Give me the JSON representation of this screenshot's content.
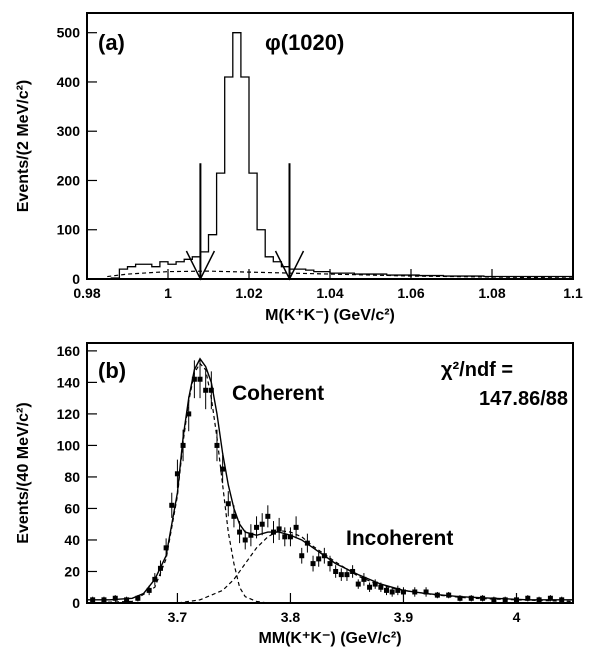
{
  "chart_data": [
    {
      "panel_label": "(a)",
      "type": "line",
      "annotation": "φ(1020)",
      "xlabel": "M(K⁺K⁻) (GeV/c²)",
      "ylabel": "Events/(2 MeV/c²)",
      "xlim": [
        0.98,
        1.1
      ],
      "ylim": [
        0,
        540
      ],
      "x_ticks": [
        0.98,
        1,
        1.02,
        1.04,
        1.06,
        1.08,
        1.1
      ],
      "y_ticks": [
        0,
        100,
        200,
        300,
        400,
        500
      ],
      "arrow_cuts_x": [
        1.008,
        1.03
      ],
      "series": [
        {
          "style": "histogram",
          "bin_width": 0.002,
          "x": [
            0.98,
            0.982,
            0.984,
            0.986,
            0.988,
            0.99,
            0.992,
            0.994,
            0.996,
            0.998,
            1.0,
            1.002,
            1.004,
            1.006,
            1.008,
            1.01,
            1.012,
            1.014,
            1.016,
            1.018,
            1.02,
            1.022,
            1.024,
            1.026,
            1.028,
            1.03,
            1.032,
            1.034,
            1.036,
            1.038,
            1.04,
            1.042,
            1.044,
            1.046,
            1.048,
            1.05,
            1.052,
            1.054,
            1.056,
            1.058,
            1.06,
            1.062,
            1.064,
            1.066,
            1.068,
            1.07,
            1.072,
            1.074,
            1.076,
            1.078,
            1.08,
            1.082,
            1.084,
            1.086,
            1.088,
            1.09,
            1.092,
            1.094,
            1.096,
            1.098
          ],
          "values": [
            0,
            0,
            0,
            2,
            20,
            25,
            30,
            30,
            25,
            35,
            30,
            35,
            40,
            45,
            55,
            90,
            215,
            410,
            500,
            410,
            215,
            100,
            45,
            35,
            25,
            20,
            20,
            18,
            15,
            15,
            12,
            12,
            12,
            10,
            10,
            10,
            10,
            8,
            8,
            8,
            8,
            7,
            7,
            7,
            6,
            6,
            6,
            6,
            6,
            5,
            5,
            5,
            5,
            5,
            5,
            5,
            5,
            5,
            5,
            5
          ]
        },
        {
          "style": "dashed",
          "x": [
            0.985,
            0.99,
            1.0,
            1.01,
            1.02,
            1.03,
            1.04,
            1.05,
            1.06,
            1.07,
            1.08,
            1.09,
            1.1
          ],
          "values": [
            5,
            10,
            15,
            16,
            14,
            12,
            10,
            8,
            6,
            5,
            4,
            3,
            2
          ]
        }
      ]
    },
    {
      "panel_label": "(b)",
      "type": "scatter",
      "fit_stat_label": "χ²/ndf =",
      "fit_stat_value": "147.86/88",
      "annotations": [
        "Coherent",
        "Incoherent"
      ],
      "xlabel": "MM(K⁺K⁻) (GeV/c²)",
      "ylabel": "Events/(40 MeV/c²)",
      "xlim": [
        3.62,
        4.05
      ],
      "ylim": [
        0,
        165
      ],
      "x_ticks": [
        3.7,
        3.8,
        3.9,
        4
      ],
      "y_ticks": [
        0,
        20,
        40,
        60,
        80,
        100,
        120,
        140,
        160
      ],
      "series": [
        {
          "style": "points",
          "x": [
            3.625,
            3.635,
            3.645,
            3.655,
            3.665,
            3.675,
            3.68,
            3.685,
            3.69,
            3.695,
            3.7,
            3.705,
            3.71,
            3.715,
            3.72,
            3.725,
            3.73,
            3.735,
            3.74,
            3.745,
            3.75,
            3.755,
            3.76,
            3.765,
            3.77,
            3.775,
            3.78,
            3.785,
            3.79,
            3.795,
            3.8,
            3.805,
            3.81,
            3.815,
            3.82,
            3.825,
            3.83,
            3.835,
            3.84,
            3.845,
            3.85,
            3.855,
            3.86,
            3.865,
            3.87,
            3.875,
            3.88,
            3.885,
            3.89,
            3.895,
            3.9,
            3.91,
            3.92,
            3.93,
            3.94,
            3.95,
            3.96,
            3.97,
            3.98,
            3.99,
            4.0,
            4.01,
            4.02,
            4.03,
            4.04
          ],
          "values": [
            2,
            2,
            3,
            2,
            3,
            8,
            15,
            22,
            35,
            62,
            82,
            100,
            120,
            142,
            142,
            135,
            135,
            100,
            85,
            63,
            55,
            45,
            40,
            43,
            48,
            50,
            55,
            45,
            47,
            42,
            42,
            48,
            30,
            38,
            25,
            28,
            30,
            25,
            20,
            18,
            18,
            20,
            12,
            15,
            10,
            12,
            10,
            8,
            7,
            8,
            7,
            7,
            7,
            5,
            5,
            3,
            3,
            3,
            2,
            2,
            2,
            3,
            2,
            3,
            2
          ],
          "errors": [
            2,
            2,
            2,
            2,
            2,
            3,
            4,
            5,
            6,
            8,
            9,
            10,
            11,
            12,
            12,
            12,
            12,
            10,
            9,
            8,
            7,
            7,
            6,
            7,
            7,
            7,
            7,
            7,
            7,
            6,
            6,
            7,
            5,
            6,
            5,
            5,
            5,
            5,
            4,
            4,
            4,
            4,
            3,
            4,
            3,
            3,
            3,
            3,
            3,
            3,
            3,
            3,
            3,
            2,
            2,
            2,
            2,
            2,
            2,
            2,
            2,
            2,
            2,
            2,
            2
          ]
        },
        {
          "style": "solid",
          "x": [
            3.62,
            3.64,
            3.66,
            3.67,
            3.68,
            3.69,
            3.7,
            3.705,
            3.71,
            3.715,
            3.72,
            3.725,
            3.73,
            3.735,
            3.74,
            3.745,
            3.75,
            3.755,
            3.76,
            3.77,
            3.78,
            3.79,
            3.8,
            3.81,
            3.82,
            3.83,
            3.84,
            3.86,
            3.88,
            3.9,
            3.92,
            3.95,
            3.98,
            4.01,
            4.05
          ],
          "values": [
            2,
            2,
            3,
            6,
            15,
            30,
            70,
            105,
            130,
            148,
            155,
            150,
            140,
            120,
            95,
            75,
            60,
            50,
            45,
            43,
            45,
            45,
            43,
            40,
            35,
            30,
            25,
            18,
            12,
            8,
            6,
            4,
            3,
            2,
            2
          ]
        },
        {
          "style": "dashed",
          "x": [
            3.62,
            3.66,
            3.68,
            3.69,
            3.7,
            3.705,
            3.71,
            3.715,
            3.72,
            3.725,
            3.73,
            3.735,
            3.74,
            3.745,
            3.75,
            3.755,
            3.76,
            3.77,
            3.78,
            3.8
          ],
          "values": [
            0,
            1,
            10,
            28,
            68,
            102,
            128,
            146,
            152,
            148,
            130,
            105,
            75,
            45,
            25,
            10,
            4,
            1,
            0,
            0
          ]
        },
        {
          "style": "dashed",
          "x": [
            3.62,
            3.7,
            3.72,
            3.74,
            3.75,
            3.76,
            3.77,
            3.78,
            3.79,
            3.8,
            3.81,
            3.82,
            3.84,
            3.86,
            3.88,
            3.9,
            3.93,
            3.96,
            4.0,
            4.05
          ],
          "values": [
            0,
            0,
            2,
            8,
            15,
            25,
            35,
            42,
            46,
            45,
            42,
            36,
            26,
            17,
            11,
            8,
            5,
            3,
            2,
            1
          ]
        }
      ]
    }
  ]
}
